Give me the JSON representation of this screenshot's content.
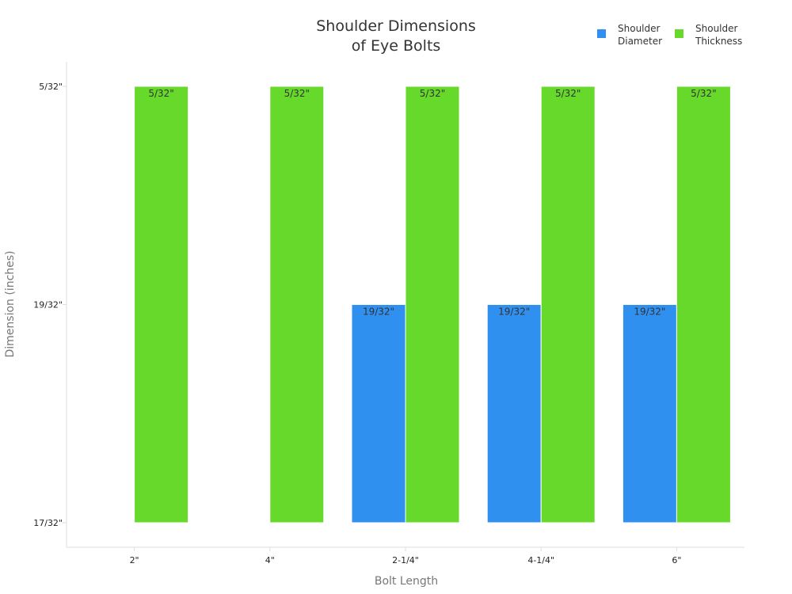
{
  "chart_data": {
    "type": "bar",
    "title_lines": [
      "Shoulder Dimensions",
      "of Eye Bolts"
    ],
    "xlabel": "Bolt Length",
    "ylabel": "Dimension (inches)",
    "categories": [
      "2\"",
      "4\"",
      "2-1/4\"",
      "4-1/4\"",
      "6\""
    ],
    "y_tick_labels": [
      "5/32\"",
      "19/32\"",
      "17/32\""
    ],
    "y_tick_values": [
      2,
      1,
      0
    ],
    "ylim": [
      0,
      2
    ],
    "series": [
      {
        "name": "Shoulder Diameter",
        "legend_lines": [
          "Shoulder",
          "Diameter"
        ],
        "color": "#3090f0",
        "values": [
          null,
          null,
          1,
          1,
          1
        ],
        "labels": [
          null,
          null,
          "19/32\"",
          "19/32\"",
          "19/32\""
        ]
      },
      {
        "name": "Shoulder Thickness",
        "legend_lines": [
          "Shoulder",
          "Thickness"
        ],
        "color": "#66d92a",
        "values": [
          2,
          2,
          2,
          2,
          2
        ],
        "labels": [
          "5/32\"",
          "5/32\"",
          "5/32\"",
          "5/32\"",
          "5/32\""
        ]
      }
    ],
    "legend_position": "top-right",
    "grid": false
  }
}
